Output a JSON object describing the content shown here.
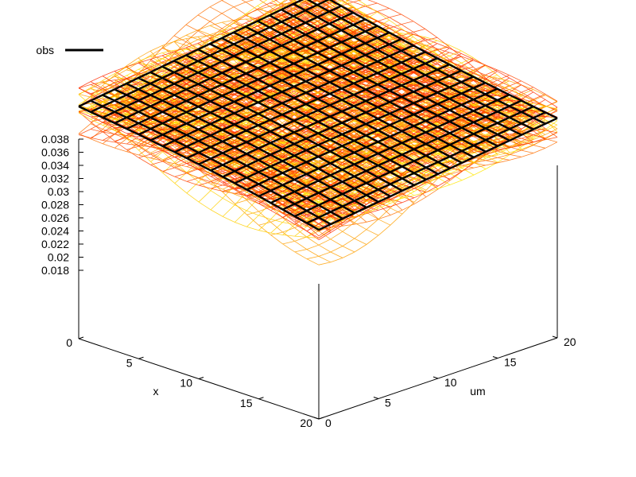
{
  "chart_data": {
    "type": "surface3d",
    "title": "",
    "xlabel": "x",
    "ylabel": "um",
    "zlabel": "",
    "x_range": [
      0,
      20
    ],
    "y_range": [
      0,
      20
    ],
    "z_range": [
      0.018,
      0.038
    ],
    "x_ticks": [
      "0",
      "5",
      "10",
      "15",
      "20"
    ],
    "y_ticks": [
      "0",
      "5",
      "10",
      "15",
      "20"
    ],
    "z_ticks": [
      "0.038",
      "0.036",
      "0.034",
      "0.032",
      "0.03",
      "0.028",
      "0.026",
      "0.024",
      "0.022",
      "0.02",
      "0.018"
    ],
    "legend": {
      "position": "top-left",
      "entries": [
        {
          "name": "obs",
          "color": "#000000"
        }
      ]
    },
    "grid": false,
    "grid_resolution": 21,
    "obs_corners": {
      "x0_y0": 0.0322,
      "x20_y0": 0.0256,
      "x0_y20": 0.0372,
      "x20_y20": 0.0303
    },
    "sample_colors": [
      "#ff2a00",
      "#ff4400",
      "#ff7000",
      "#ffa000",
      "#ffd000",
      "#ffe600"
    ],
    "sample_count": 14,
    "ensemble_spread": 0.004
  }
}
